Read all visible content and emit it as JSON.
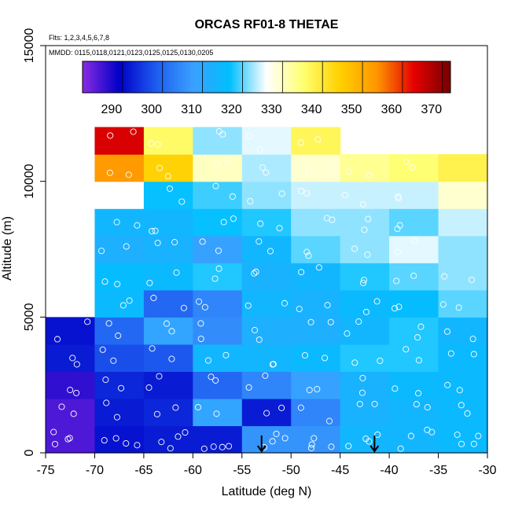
{
  "chart_data": {
    "type": "heatmap",
    "title": "ORCAS RF01-8 THETAE",
    "flights_note": "Flts: 1,2,3,4,5,6,7,8",
    "dates_note": "MMDD: 0115,0118,0121,0123,0125,0125,0130,0205",
    "xlabel": "Latitude (deg N)",
    "ylabel": "Altitude (m)",
    "xlim": [
      -75,
      -30
    ],
    "ylim": [
      0,
      15000
    ],
    "x_ticks": [
      "-75",
      "-70",
      "-65",
      "-60",
      "-55",
      "-50",
      "-45",
      "-40",
      "-35",
      "-30"
    ],
    "y_ticks": [
      "0",
      "5000",
      "10000",
      "15000"
    ],
    "colorbar": {
      "range": [
        280,
        372
      ],
      "ticks": [
        "290",
        "300",
        "310",
        "320",
        "330",
        "340",
        "350",
        "360",
        "370"
      ],
      "colors": [
        "#8a2be2",
        "#0000c8",
        "#1e5cf0",
        "#3aa0ff",
        "#00bfff",
        "#ffffff",
        "#ffff70",
        "#ffd000",
        "#ff9600",
        "#e60000",
        "#780000"
      ]
    },
    "cell_size": {
      "lat_deg": 5,
      "alt_m": 1000
    },
    "cells": [
      {
        "lat": -75,
        "alt": 0,
        "v": 284
      },
      {
        "lat": -75,
        "alt": 1000,
        "v": 284
      },
      {
        "lat": -75,
        "alt": 2000,
        "v": 286
      },
      {
        "lat": -75,
        "alt": 3000,
        "v": 292
      },
      {
        "lat": -75,
        "alt": 4000,
        "v": 291
      },
      {
        "lat": -70,
        "alt": 0,
        "v": 291
      },
      {
        "lat": -70,
        "alt": 1000,
        "v": 292
      },
      {
        "lat": -70,
        "alt": 2000,
        "v": 293
      },
      {
        "lat": -70,
        "alt": 3000,
        "v": 297
      },
      {
        "lat": -70,
        "alt": 4000,
        "v": 300
      },
      {
        "lat": -70,
        "alt": 5000,
        "v": 315
      },
      {
        "lat": -70,
        "alt": 6000,
        "v": 316
      },
      {
        "lat": -70,
        "alt": 7000,
        "v": 312
      },
      {
        "lat": -70,
        "alt": 8000,
        "v": 314
      },
      {
        "lat": -70,
        "alt": 9000,
        "v": 326
      },
      {
        "lat": -70,
        "alt": 10000,
        "v": 353
      },
      {
        "lat": -70,
        "alt": 11000,
        "v": 364
      },
      {
        "lat": -65,
        "alt": 0,
        "v": 292
      },
      {
        "lat": -65,
        "alt": 1000,
        "v": 293
      },
      {
        "lat": -65,
        "alt": 2000,
        "v": 292
      },
      {
        "lat": -65,
        "alt": 3000,
        "v": 298
      },
      {
        "lat": -65,
        "alt": 4000,
        "v": 309
      },
      {
        "lat": -65,
        "alt": 5000,
        "v": 300
      },
      {
        "lat": -65,
        "alt": 6000,
        "v": 315
      },
      {
        "lat": -65,
        "alt": 7000,
        "v": 313
      },
      {
        "lat": -65,
        "alt": 8000,
        "v": 314
      },
      {
        "lat": -65,
        "alt": 9000,
        "v": 317
      },
      {
        "lat": -65,
        "alt": 10000,
        "v": 344
      },
      {
        "lat": -65,
        "alt": 11000,
        "v": 336
      },
      {
        "lat": -60,
        "alt": 0,
        "v": 292
      },
      {
        "lat": -60,
        "alt": 1000,
        "v": 309
      },
      {
        "lat": -60,
        "alt": 2000,
        "v": 300
      },
      {
        "lat": -60,
        "alt": 3000,
        "v": 314
      },
      {
        "lat": -60,
        "alt": 4000,
        "v": 305
      },
      {
        "lat": -60,
        "alt": 5000,
        "v": 304
      },
      {
        "lat": -60,
        "alt": 6000,
        "v": 318
      },
      {
        "lat": -60,
        "alt": 7000,
        "v": 308
      },
      {
        "lat": -60,
        "alt": 8000,
        "v": 317
      },
      {
        "lat": -60,
        "alt": 9000,
        "v": 319
      },
      {
        "lat": -60,
        "alt": 10000,
        "v": 330
      },
      {
        "lat": -60,
        "alt": 11000,
        "v": 322
      },
      {
        "lat": -55,
        "alt": 0,
        "v": 306
      },
      {
        "lat": -55,
        "alt": 1000,
        "v": 292
      },
      {
        "lat": -55,
        "alt": 2000,
        "v": 304
      },
      {
        "lat": -55,
        "alt": 3000,
        "v": 314
      },
      {
        "lat": -55,
        "alt": 4000,
        "v": 312
      },
      {
        "lat": -55,
        "alt": 5000,
        "v": 314
      },
      {
        "lat": -55,
        "alt": 6000,
        "v": 313
      },
      {
        "lat": -55,
        "alt": 7000,
        "v": 314
      },
      {
        "lat": -55,
        "alt": 8000,
        "v": 318
      },
      {
        "lat": -55,
        "alt": 9000,
        "v": 322
      },
      {
        "lat": -55,
        "alt": 10000,
        "v": 323
      },
      {
        "lat": -55,
        "alt": 11000,
        "v": 325
      },
      {
        "lat": -50,
        "alt": 0,
        "v": 306
      },
      {
        "lat": -50,
        "alt": 1000,
        "v": 304
      },
      {
        "lat": -50,
        "alt": 2000,
        "v": 308
      },
      {
        "lat": -50,
        "alt": 3000,
        "v": 315
      },
      {
        "lat": -50,
        "alt": 4000,
        "v": 312
      },
      {
        "lat": -50,
        "alt": 5000,
        "v": 313
      },
      {
        "lat": -50,
        "alt": 6000,
        "v": 314
      },
      {
        "lat": -50,
        "alt": 7000,
        "v": 320
      },
      {
        "lat": -50,
        "alt": 8000,
        "v": 322
      },
      {
        "lat": -50,
        "alt": 9000,
        "v": 324
      },
      {
        "lat": -50,
        "alt": 10000,
        "v": 329
      },
      {
        "lat": -50,
        "alt": 11000,
        "v": 337
      },
      {
        "lat": -45,
        "alt": 0,
        "v": 314
      },
      {
        "lat": -45,
        "alt": 1000,
        "v": 313
      },
      {
        "lat": -45,
        "alt": 2000,
        "v": 313
      },
      {
        "lat": -45,
        "alt": 3000,
        "v": 318
      },
      {
        "lat": -45,
        "alt": 4000,
        "v": 314
      },
      {
        "lat": -45,
        "alt": 5000,
        "v": 315
      },
      {
        "lat": -45,
        "alt": 6000,
        "v": 318
      },
      {
        "lat": -45,
        "alt": 7000,
        "v": 322
      },
      {
        "lat": -45,
        "alt": 8000,
        "v": 322
      },
      {
        "lat": -45,
        "alt": 9000,
        "v": 324
      },
      {
        "lat": -45,
        "alt": 10000,
        "v": 333
      },
      {
        "lat": -40,
        "alt": 0,
        "v": 314
      },
      {
        "lat": -40,
        "alt": 1000,
        "v": 314
      },
      {
        "lat": -40,
        "alt": 2000,
        "v": 315
      },
      {
        "lat": -40,
        "alt": 3000,
        "v": 318
      },
      {
        "lat": -40,
        "alt": 4000,
        "v": 318
      },
      {
        "lat": -40,
        "alt": 5000,
        "v": 316
      },
      {
        "lat": -40,
        "alt": 6000,
        "v": 320
      },
      {
        "lat": -40,
        "alt": 7000,
        "v": 325
      },
      {
        "lat": -40,
        "alt": 8000,
        "v": 320
      },
      {
        "lat": -40,
        "alt": 9000,
        "v": 324
      },
      {
        "lat": -40,
        "alt": 10000,
        "v": 335
      },
      {
        "lat": -35,
        "alt": 0,
        "v": 315
      },
      {
        "lat": -35,
        "alt": 1000,
        "v": 315
      },
      {
        "lat": -35,
        "alt": 2000,
        "v": 315
      },
      {
        "lat": -35,
        "alt": 3000,
        "v": 315
      },
      {
        "lat": -35,
        "alt": 4000,
        "v": 314
      },
      {
        "lat": -35,
        "alt": 5000,
        "v": 320
      },
      {
        "lat": -35,
        "alt": 6000,
        "v": 322
      },
      {
        "lat": -35,
        "alt": 7000,
        "v": 322
      },
      {
        "lat": -35,
        "alt": 8000,
        "v": 324
      },
      {
        "lat": -35,
        "alt": 9000,
        "v": 329
      },
      {
        "lat": -35,
        "alt": 10000,
        "v": 338
      }
    ],
    "markers": [
      {
        "lat": -53,
        "alt": 0
      },
      {
        "lat": -41.5,
        "alt": 0
      }
    ]
  }
}
